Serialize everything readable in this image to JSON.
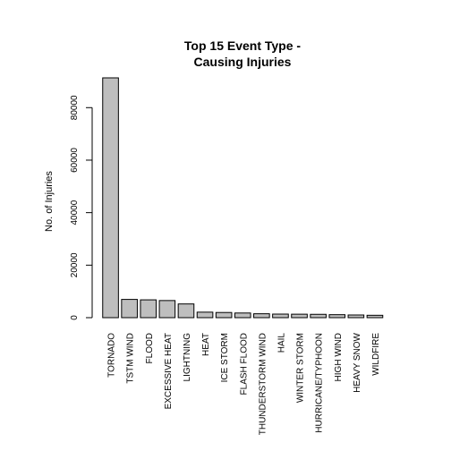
{
  "chart_data": {
    "type": "bar",
    "title_lines": [
      "Top 15 Event Type -",
      "Causing Injuries"
    ],
    "ylabel": "No. of Injuries",
    "xlabel": "",
    "categories": [
      "TORNADO",
      "TSTM WIND",
      "FLOOD",
      "EXCESSIVE HEAT",
      "LIGHTNING",
      "HEAT",
      "ICE STORM",
      "FLASH FLOOD",
      "THUNDERSTORM WIND",
      "HAIL",
      "WINTER STORM",
      "HURRICANE/TYPHOON",
      "HIGH WIND",
      "HEAVY SNOW",
      "WILDFIRE"
    ],
    "values": [
      91346,
      6957,
      6789,
      6525,
      5230,
      2100,
      1975,
      1777,
      1488,
      1361,
      1321,
      1275,
      1137,
      1021,
      911
    ],
    "ylim": [
      0,
      91346
    ],
    "yticks": [
      0,
      20000,
      40000,
      60000,
      80000
    ],
    "ytick_labels": [
      "0",
      "20000",
      "40000",
      "60000",
      "80000"
    ],
    "bar_fill": "#bebebe",
    "bar_stroke": "#000000",
    "grid": false,
    "legend": "none"
  }
}
